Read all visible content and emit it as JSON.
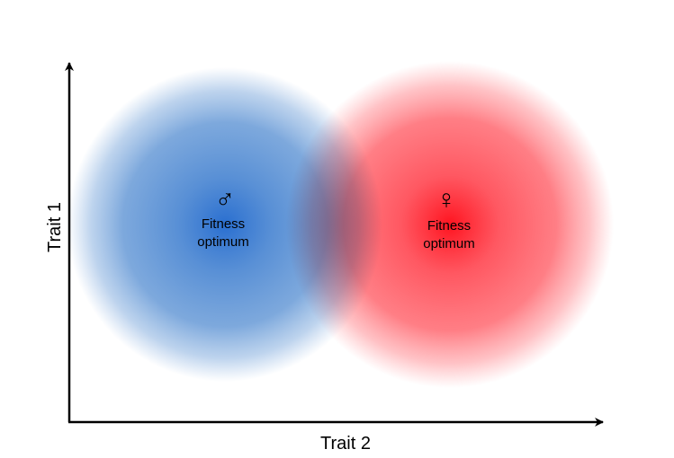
{
  "axes": {
    "x_label": "Trait 2",
    "y_label": "Trait 1"
  },
  "optima": {
    "male": {
      "symbol": "♂",
      "line1": "Fitness",
      "line2": "optimum",
      "color": "#3f7fcf"
    },
    "female": {
      "symbol": "♀",
      "line1": "Fitness",
      "line2": "optimum",
      "color": "#ff1f2a"
    }
  }
}
